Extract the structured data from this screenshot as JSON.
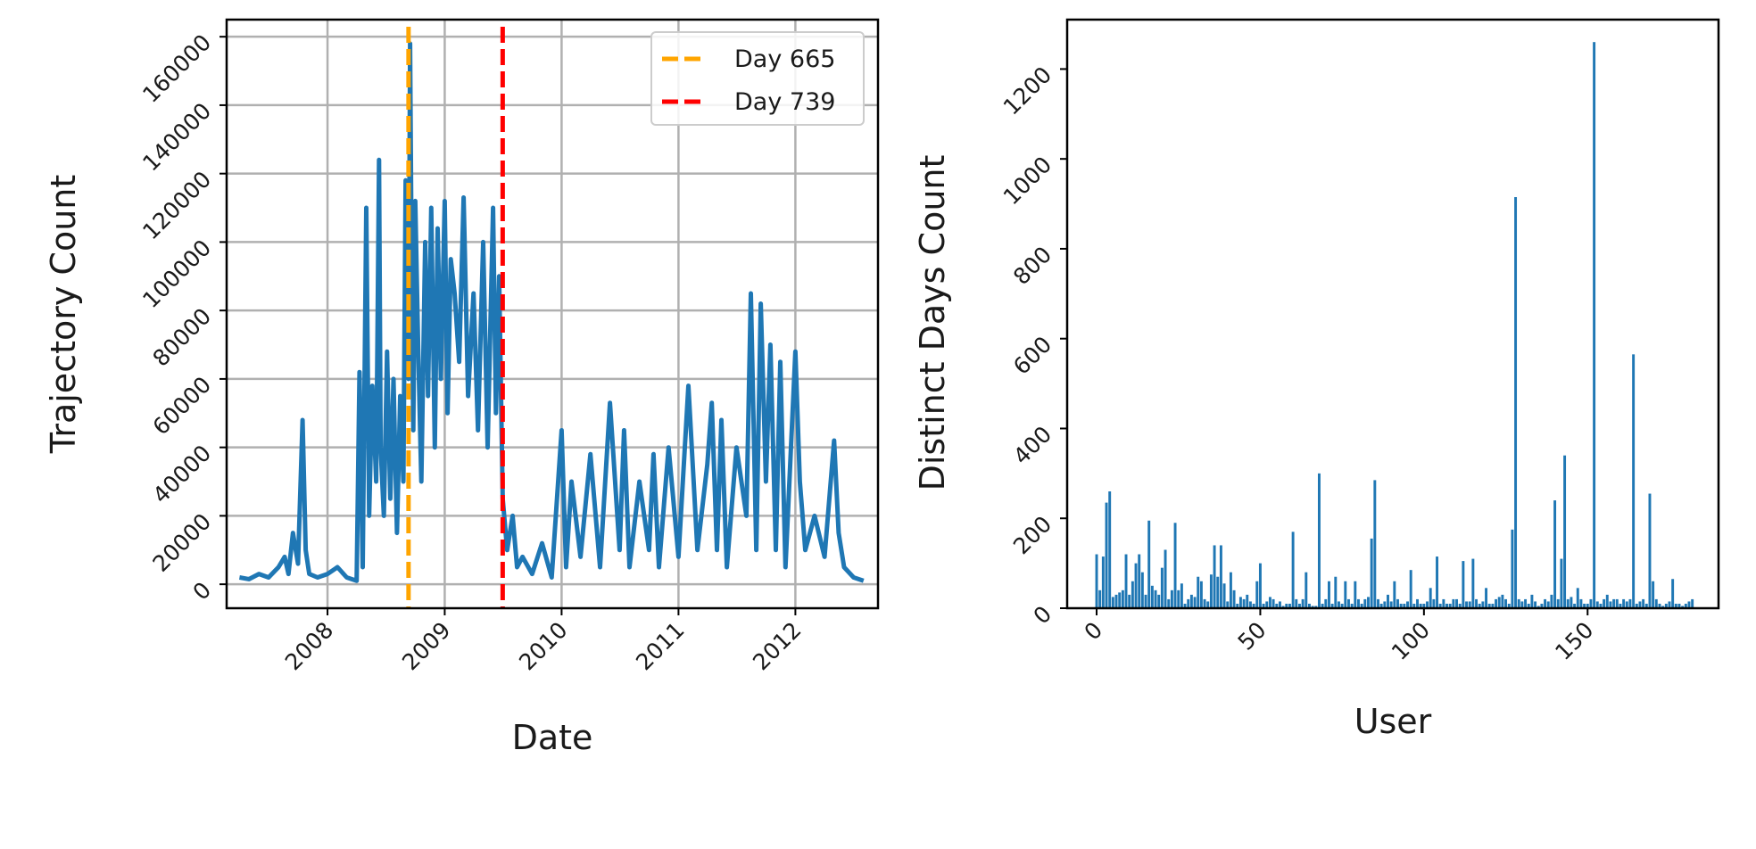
{
  "chart_data": [
    {
      "type": "line",
      "xlabel": "Date",
      "ylabel": "Trajectory Count",
      "x_ticks": [
        "2008",
        "2009",
        "2010",
        "2011",
        "2012"
      ],
      "y_ticks": [
        "0",
        "20000",
        "40000",
        "60000",
        "80000",
        "100000",
        "120000",
        "140000",
        "160000"
      ],
      "xlim": [
        "2007-02-20",
        "2012-09-15"
      ],
      "ylim": [
        -7000,
        165000
      ],
      "grid": true,
      "legend_position": "top-right",
      "line_color": "#1f77b4",
      "reference_lines": [
        {
          "label": "Day 665",
          "date": "2008-09-10",
          "color": "#ffa500",
          "style": "dashed"
        },
        {
          "label": "Day 739",
          "date": "2009-07-01",
          "color": "#ff0000",
          "style": "dashed"
        }
      ],
      "series": [
        {
          "x": [
            "2007-04-01",
            "2007-05-01",
            "2007-06-01",
            "2007-07-01",
            "2007-08-01",
            "2007-08-20",
            "2007-09-01",
            "2007-09-15",
            "2007-10-01",
            "2007-10-15",
            "2007-10-25",
            "2007-11-05",
            "2007-12-01",
            "2008-01-01",
            "2008-02-01",
            "2008-03-01",
            "2008-04-01",
            "2008-04-10",
            "2008-04-20",
            "2008-05-01",
            "2008-05-10",
            "2008-05-20",
            "2008-06-01",
            "2008-06-10",
            "2008-06-15",
            "2008-06-25",
            "2008-07-05",
            "2008-07-15",
            "2008-07-25",
            "2008-08-05",
            "2008-08-15",
            "2008-08-25",
            "2008-09-01",
            "2008-09-10",
            "2008-09-15",
            "2008-09-20",
            "2008-09-25",
            "2008-10-01",
            "2008-10-10",
            "2008-10-20",
            "2008-11-01",
            "2008-11-10",
            "2008-11-20",
            "2008-12-01",
            "2008-12-10",
            "2008-12-20",
            "2009-01-01",
            "2009-01-10",
            "2009-01-20",
            "2009-02-01",
            "2009-02-15",
            "2009-03-01",
            "2009-03-15",
            "2009-04-01",
            "2009-04-15",
            "2009-05-01",
            "2009-05-15",
            "2009-06-01",
            "2009-06-10",
            "2009-06-20",
            "2009-07-01",
            "2009-07-15",
            "2009-08-01",
            "2009-08-15",
            "2009-09-01",
            "2009-10-01",
            "2009-11-01",
            "2009-12-01",
            "2010-01-01",
            "2010-01-15",
            "2010-02-01",
            "2010-03-01",
            "2010-04-01",
            "2010-05-01",
            "2010-06-01",
            "2010-07-01",
            "2010-07-15",
            "2010-08-01",
            "2010-09-01",
            "2010-10-01",
            "2010-10-15",
            "2010-11-01",
            "2010-12-01",
            "2011-01-01",
            "2011-02-01",
            "2011-03-01",
            "2011-04-01",
            "2011-04-15",
            "2011-05-01",
            "2011-05-15",
            "2011-06-01",
            "2011-07-01",
            "2011-08-01",
            "2011-08-15",
            "2011-09-01",
            "2011-09-15",
            "2011-10-01",
            "2011-10-15",
            "2011-11-01",
            "2011-11-15",
            "2011-12-01",
            "2012-01-01",
            "2012-01-15",
            "2012-02-01",
            "2012-03-01",
            "2012-04-01",
            "2012-05-01",
            "2012-05-15",
            "2012-06-01",
            "2012-07-01",
            "2012-08-01"
          ],
          "values": [
            2000,
            1500,
            3000,
            2000,
            5000,
            8000,
            3000,
            15000,
            6000,
            48000,
            10000,
            3000,
            2000,
            3000,
            5000,
            2000,
            1000,
            62000,
            5000,
            110000,
            20000,
            58000,
            30000,
            124000,
            40000,
            20000,
            68000,
            25000,
            60000,
            15000,
            55000,
            30000,
            118000,
            60000,
            158000,
            90000,
            45000,
            112000,
            70000,
            30000,
            100000,
            55000,
            110000,
            40000,
            104000,
            60000,
            112000,
            50000,
            95000,
            85000,
            65000,
            113000,
            55000,
            85000,
            45000,
            100000,
            40000,
            110000,
            50000,
            90000,
            25000,
            10000,
            20000,
            5000,
            8000,
            3000,
            12000,
            2000,
            45000,
            5000,
            30000,
            8000,
            38000,
            5000,
            53000,
            10000,
            45000,
            5000,
            30000,
            10000,
            38000,
            5000,
            40000,
            8000,
            58000,
            10000,
            35000,
            53000,
            10000,
            48000,
            5000,
            40000,
            20000,
            85000,
            10000,
            82000,
            30000,
            70000,
            10000,
            65000,
            5000,
            68000,
            30000,
            10000,
            20000,
            8000,
            42000,
            15000,
            5000,
            2000,
            1000
          ]
        }
      ]
    },
    {
      "type": "bar",
      "xlabel": "User",
      "ylabel": "Distinct Days Count",
      "x_ticks": [
        "0",
        "50",
        "100",
        "150"
      ],
      "y_ticks": [
        "0",
        "200",
        "400",
        "600",
        "800",
        "1000",
        "1200"
      ],
      "xlim": [
        -9,
        190
      ],
      "ylim": [
        0,
        1310
      ],
      "grid": false,
      "bar_color": "#1f77b4",
      "x": [
        0,
        1,
        2,
        3,
        4,
        5,
        6,
        7,
        8,
        9,
        10,
        11,
        12,
        13,
        14,
        15,
        16,
        17,
        18,
        19,
        20,
        21,
        22,
        23,
        24,
        25,
        26,
        27,
        28,
        29,
        30,
        31,
        32,
        33,
        34,
        35,
        36,
        37,
        38,
        39,
        40,
        41,
        42,
        43,
        44,
        45,
        46,
        47,
        48,
        49,
        50,
        51,
        52,
        53,
        54,
        55,
        56,
        57,
        58,
        59,
        60,
        61,
        62,
        63,
        64,
        65,
        66,
        67,
        68,
        69,
        70,
        71,
        72,
        73,
        74,
        75,
        76,
        77,
        78,
        79,
        80,
        81,
        82,
        83,
        84,
        85,
        86,
        87,
        88,
        89,
        90,
        91,
        92,
        93,
        94,
        95,
        96,
        97,
        98,
        99,
        100,
        101,
        102,
        103,
        104,
        105,
        106,
        107,
        108,
        109,
        110,
        111,
        112,
        113,
        114,
        115,
        116,
        117,
        118,
        119,
        120,
        121,
        122,
        123,
        124,
        125,
        126,
        127,
        128,
        129,
        130,
        131,
        132,
        133,
        134,
        135,
        136,
        137,
        138,
        139,
        140,
        141,
        142,
        143,
        144,
        145,
        146,
        147,
        148,
        149,
        150,
        151,
        152,
        153,
        154,
        155,
        156,
        157,
        158,
        159,
        160,
        161,
        162,
        163,
        164,
        165,
        166,
        167,
        168,
        169,
        170,
        171,
        172,
        173,
        174,
        175,
        176,
        177,
        178,
        179,
        180,
        181,
        182
      ],
      "values": [
        120,
        40,
        115,
        235,
        260,
        25,
        30,
        35,
        40,
        120,
        30,
        60,
        100,
        120,
        80,
        30,
        195,
        50,
        40,
        30,
        90,
        130,
        20,
        40,
        190,
        40,
        55,
        10,
        20,
        30,
        25,
        70,
        60,
        20,
        15,
        75,
        140,
        70,
        140,
        55,
        15,
        80,
        40,
        10,
        25,
        20,
        30,
        15,
        10,
        60,
        100,
        10,
        15,
        25,
        20,
        10,
        15,
        5,
        10,
        10,
        170,
        20,
        10,
        20,
        80,
        10,
        5,
        5,
        300,
        10,
        20,
        60,
        10,
        70,
        15,
        10,
        60,
        20,
        10,
        60,
        20,
        10,
        20,
        25,
        155,
        285,
        20,
        10,
        15,
        30,
        15,
        60,
        20,
        10,
        10,
        15,
        85,
        10,
        20,
        10,
        10,
        15,
        45,
        20,
        115,
        10,
        20,
        10,
        10,
        20,
        20,
        10,
        105,
        15,
        15,
        110,
        20,
        10,
        15,
        45,
        10,
        10,
        20,
        25,
        30,
        20,
        10,
        175,
        915,
        20,
        15,
        20,
        10,
        30,
        15,
        5,
        10,
        20,
        15,
        30,
        240,
        20,
        110,
        340,
        20,
        25,
        10,
        45,
        20,
        10,
        10,
        20,
        1260,
        15,
        10,
        20,
        30,
        15,
        20,
        20,
        10,
        20,
        15,
        20,
        565,
        10,
        15,
        20,
        10,
        255,
        60,
        20,
        10,
        5,
        10,
        15,
        65,
        10,
        10,
        5,
        10,
        15,
        20
      ]
    }
  ]
}
